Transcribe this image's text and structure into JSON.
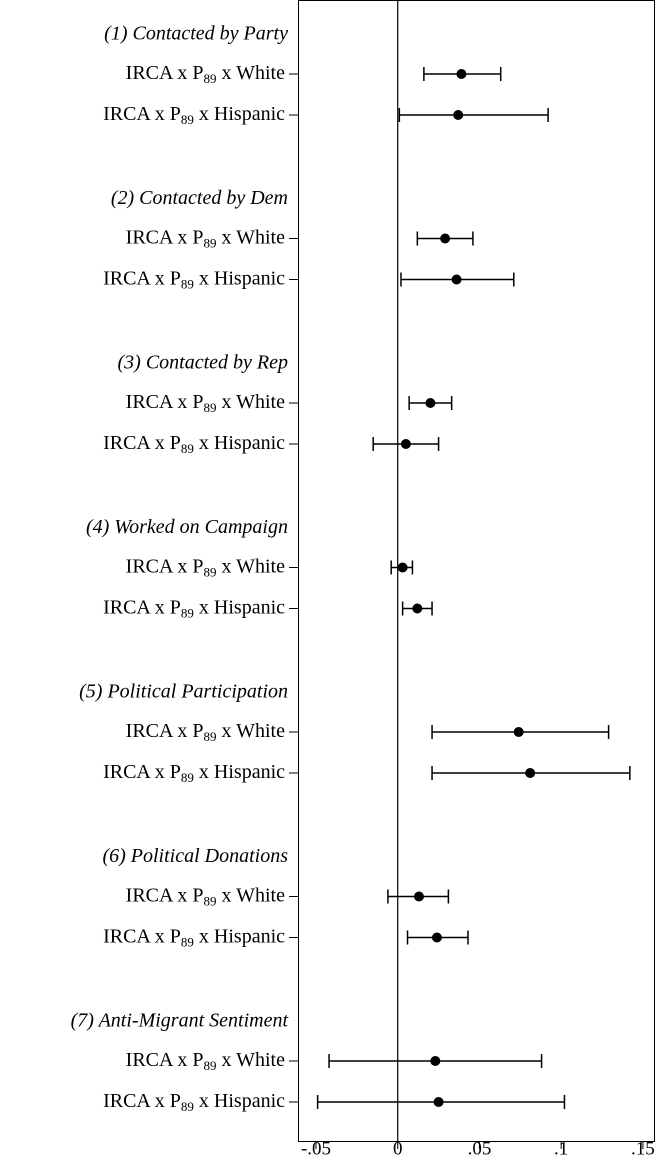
{
  "chart_data": {
    "type": "coefplot",
    "groups": [
      {
        "name": "(1) Contacted by Party",
        "categories": [
          "IRCA x P89 x White",
          "IRCA x P89 x Hispanic"
        ],
        "values": [
          0.039,
          0.037
        ],
        "ci_low": [
          0.016,
          0.001
        ],
        "ci_high": [
          0.063,
          0.092
        ]
      },
      {
        "name": "(2) Contacted by Dem",
        "categories": [
          "IRCA x P89 x White",
          "IRCA x P89 x Hispanic"
        ],
        "values": [
          0.029,
          0.036
        ],
        "ci_low": [
          0.012,
          0.002
        ],
        "ci_high": [
          0.046,
          0.071
        ]
      },
      {
        "name": "(3) Contacted by Rep",
        "categories": [
          "IRCA x P89 x White",
          "IRCA x P89 x Hispanic"
        ],
        "values": [
          0.02,
          0.005
        ],
        "ci_low": [
          0.007,
          -0.015
        ],
        "ci_high": [
          0.033,
          0.025
        ]
      },
      {
        "name": "(4) Worked on Campaign",
        "categories": [
          "IRCA x P89 x White",
          "IRCA x P89 x Hispanic"
        ],
        "values": [
          0.003,
          0.012
        ],
        "ci_low": [
          -0.004,
          0.003
        ],
        "ci_high": [
          0.009,
          0.021
        ]
      },
      {
        "name": "(5) Political Participation",
        "categories": [
          "IRCA x P89 x White",
          "IRCA x P89 x Hispanic"
        ],
        "values": [
          0.074,
          0.081
        ],
        "ci_low": [
          0.021,
          0.021
        ],
        "ci_high": [
          0.129,
          0.142
        ]
      },
      {
        "name": "(6) Political Donations",
        "categories": [
          "IRCA x P89 x White",
          "IRCA x P89 x Hispanic"
        ],
        "values": [
          0.013,
          0.024
        ],
        "ci_low": [
          -0.006,
          0.006
        ],
        "ci_high": [
          0.031,
          0.043
        ]
      },
      {
        "name": "(7) Anti-Migrant Sentiment",
        "categories": [
          "IRCA x P89 x White",
          "IRCA x P89 x Hispanic"
        ],
        "values": [
          0.023,
          0.025
        ],
        "ci_low": [
          -0.042,
          -0.049
        ],
        "ci_high": [
          0.088,
          0.102
        ]
      }
    ],
    "color": "#000000",
    "xlim": [
      -0.061,
      0.158
    ],
    "xticks": [
      {
        "value": -0.05,
        "label": "-.05"
      },
      0,
      {
        "value": 0.05,
        "label": ".05"
      },
      {
        "value": 0.1,
        "label": ".1"
      },
      {
        "value": 0.15,
        "label": ".15"
      }
    ]
  }
}
